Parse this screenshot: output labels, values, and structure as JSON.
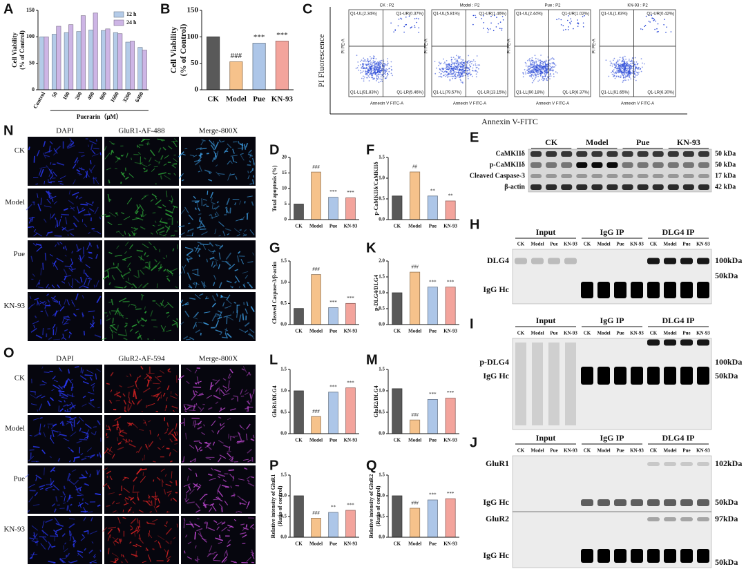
{
  "chart_data": [
    {
      "type": "grouped-bar",
      "label": "A",
      "ylabel": [
        "Cell Viability",
        "(% of Control)"
      ],
      "xlabel": "Puerarin（μM）",
      "categories": [
        "Control",
        "50",
        "100",
        "200",
        "400",
        "800",
        "1600",
        "3200",
        "6400"
      ],
      "series": [
        {
          "name": "12 h",
          "color": "#b4cbe8",
          "values": [
            100,
            105,
            108,
            110,
            113,
            112,
            108,
            90,
            80
          ]
        },
        {
          "name": "24 h",
          "color": "#cdb5e5",
          "values": [
            100,
            120,
            123,
            140,
            145,
            115,
            106,
            92,
            75
          ]
        }
      ],
      "ylim": [
        0,
        150
      ],
      "yticks": [
        0,
        50,
        100,
        150
      ]
    },
    {
      "type": "bar",
      "label": "B",
      "ylabel": [
        "Cell Viability",
        "(% of Control)"
      ],
      "categories": [
        "CK",
        "Model",
        "Pue",
        "KN-93"
      ],
      "values": [
        100,
        53,
        88,
        92
      ],
      "colors": [
        "#595959",
        "#f6c28b",
        "#adc6e8",
        "#f3a49c"
      ],
      "annotations": [
        null,
        "###",
        "***",
        "***"
      ],
      "ylim": [
        0,
        150
      ],
      "yticks": [
        0,
        50,
        100,
        150
      ]
    },
    {
      "type": "bar",
      "label": "D",
      "ylabel": [
        "Total apoptosis (%)"
      ],
      "categories": [
        "CK",
        "Model",
        "Pue",
        "KN-93"
      ],
      "values": [
        5,
        15.3,
        7.2,
        7
      ],
      "colors": [
        "#595959",
        "#f6c28b",
        "#adc6e8",
        "#f3a49c"
      ],
      "annotations": [
        null,
        "###",
        "***",
        "***"
      ],
      "ylim": [
        0,
        20
      ],
      "yticks": [
        0,
        5,
        10,
        15,
        20
      ]
    },
    {
      "type": "bar",
      "label": "F",
      "ylabel": [
        "p-CaMKIIδ/CaMKIIδ"
      ],
      "categories": [
        "CK",
        "Model",
        "Pue",
        "KN-93"
      ],
      "values": [
        0.57,
        1.15,
        0.57,
        0.45
      ],
      "colors": [
        "#595959",
        "#f6c28b",
        "#adc6e8",
        "#f3a49c"
      ],
      "annotations": [
        null,
        "##",
        "**",
        "**"
      ],
      "ylim": [
        0,
        1.5
      ],
      "yticks": [
        {
          "value": 0,
          "label": "0.0"
        },
        0.5,
        {
          "value": 1,
          "label": "1.0"
        },
        1.5
      ]
    },
    {
      "type": "bar",
      "label": "G",
      "ylabel": [
        "Cleaved Caspase-3/β-actin"
      ],
      "categories": [
        "CK",
        "Model",
        "Pue",
        "KN-93"
      ],
      "values": [
        0.38,
        1.18,
        0.4,
        0.5
      ],
      "colors": [
        "#595959",
        "#f6c28b",
        "#adc6e8",
        "#f3a49c"
      ],
      "annotations": [
        null,
        "###",
        "***",
        "***"
      ],
      "ylim": [
        0,
        1.5
      ],
      "yticks": [
        {
          "value": 0,
          "label": "0.0"
        },
        0.5,
        {
          "value": 1,
          "label": "1.0"
        },
        1.5
      ]
    },
    {
      "type": "bar",
      "label": "K",
      "ylabel": [
        "p-DLG4/DLG4"
      ],
      "categories": [
        "CK",
        "Model",
        "Pue",
        "KN-93"
      ],
      "values": [
        1.0,
        1.65,
        1.18,
        1.18
      ],
      "colors": [
        "#595959",
        "#f6c28b",
        "#adc6e8",
        "#f3a49c"
      ],
      "annotations": [
        null,
        "###",
        "***",
        "***"
      ],
      "ylim": [
        0,
        2
      ],
      "yticks": [
        {
          "value": 0,
          "label": "0.0"
        },
        0.5,
        {
          "value": 1,
          "label": "1.0"
        },
        1.5,
        {
          "value": 2,
          "label": "2.0"
        }
      ]
    },
    {
      "type": "bar",
      "label": "L",
      "ylabel": [
        "GluR1/DLG4"
      ],
      "categories": [
        "CK",
        "Model",
        "Pue",
        "KN-93"
      ],
      "values": [
        1.0,
        0.4,
        0.97,
        1.07
      ],
      "colors": [
        "#595959",
        "#f6c28b",
        "#adc6e8",
        "#f3a49c"
      ],
      "annotations": [
        null,
        "###",
        "***",
        "***"
      ],
      "ylim": [
        0,
        1.5
      ],
      "yticks": [
        {
          "value": 0,
          "label": "0.0"
        },
        0.5,
        {
          "value": 1,
          "label": "1.0"
        },
        1.5
      ]
    },
    {
      "type": "bar",
      "label": "M",
      "ylabel": [
        "GluR2/DLG4"
      ],
      "categories": [
        "CK",
        "Model",
        "Pue",
        "KN-93"
      ],
      "values": [
        1.05,
        0.32,
        0.8,
        0.83
      ],
      "colors": [
        "#595959",
        "#f6c28b",
        "#adc6e8",
        "#f3a49c"
      ],
      "annotations": [
        null,
        "###",
        "***",
        "***"
      ],
      "ylim": [
        0,
        1.5
      ],
      "yticks": [
        {
          "value": 0,
          "label": "0.0"
        },
        0.5,
        {
          "value": 1,
          "label": "1.0"
        },
        1.5
      ]
    },
    {
      "type": "bar",
      "label": "P",
      "ylabel": [
        "Relative intensity of GluR1",
        "(Ratio of control)"
      ],
      "categories": [
        "CK",
        "Model",
        "Pue",
        "KN-93"
      ],
      "values": [
        1.0,
        0.46,
        0.6,
        0.65
      ],
      "colors": [
        "#595959",
        "#f6c28b",
        "#adc6e8",
        "#f3a49c"
      ],
      "annotations": [
        null,
        "###",
        "**",
        "***"
      ],
      "ylim": [
        0,
        1.5
      ],
      "yticks": [
        {
          "value": 0,
          "label": "0.0"
        },
        0.5,
        {
          "value": 1,
          "label": "1.0"
        },
        1.5
      ]
    },
    {
      "type": "bar",
      "label": "Q",
      "ylabel": [
        "Relative intensity of GluR2",
        "(Ratio of control)"
      ],
      "categories": [
        "CK",
        "Model",
        "Pue",
        "KN-93"
      ],
      "values": [
        1.0,
        0.7,
        0.9,
        0.93
      ],
      "colors": [
        "#595959",
        "#f6c28b",
        "#adc6e8",
        "#f3a49c"
      ],
      "annotations": [
        null,
        "###",
        "***",
        "***"
      ],
      "ylim": [
        0,
        1.5
      ],
      "yticks": [
        {
          "value": 0,
          "label": "0.0"
        },
        0.5,
        {
          "value": 1,
          "label": "1.0"
        },
        1.5
      ]
    }
  ],
  "flow": {
    "label": "C",
    "ylabel": "PI Fluorescence",
    "xlabel": "Annexin V-FITC",
    "plot_xlabel": "Annexin V FITC-A",
    "plot_ylabel": "PI PE-A",
    "plots": [
      {
        "title": "CK : P2",
        "ul": "Q1-UL(2.34%)",
        "ur": "Q1-UR(0.37%)",
        "ll": "Q1-LL(91.83%)",
        "lr": "Q1-LR(5.46%)"
      },
      {
        "title": "Model : P2",
        "ul": "Q1-UL(5.81%)",
        "ur": "Q1-UR(1.46%)",
        "ll": "Q1-LL(79.57%)",
        "lr": "Q1-LR(13.15%)"
      },
      {
        "title": "Pue : P2",
        "ul": "Q1-UL(2.44%)",
        "ur": "Q1-UR(1.02%)",
        "ll": "Q1-LL(90.18%)",
        "lr": "Q1-LR(6.37%)"
      },
      {
        "title": "KN-93 : P2",
        "ul": "Q1-UL(1.63%)",
        "ur": "Q1-UR(0.42%)",
        "ll": "Q1-LL(91.65%)",
        "lr": "Q1-LR(6.30%)"
      }
    ]
  },
  "microscopy": [
    {
      "label": "N",
      "columns": [
        "DAPI",
        "GluR1-AF-488",
        "Merge-800X"
      ],
      "rows": [
        "CK",
        "Model",
        "Pue",
        "KN-93"
      ]
    },
    {
      "label": "O",
      "columns": [
        "DAPI",
        "GluR2-AF-594",
        "Merge-800X"
      ],
      "rows": [
        "CK",
        "Model",
        "Pue",
        "KN-93"
      ]
    }
  ],
  "blots": [
    {
      "label": "E",
      "groups": [
        "CK",
        "Model",
        "Pue",
        "KN-93"
      ],
      "rows": [
        {
          "name": "CaMKIIδ",
          "size": "50 kDa"
        },
        {
          "name": "p-CaMKIIδ",
          "size": "50 kDa"
        },
        {
          "name": "Cleaved Caspase-3",
          "size": "17 kDa"
        },
        {
          "name": "β-actin",
          "size": "42 kDa"
        }
      ]
    },
    {
      "label": "H",
      "groups": [
        "Input",
        "IgG IP",
        "DLG4 IP"
      ],
      "lanes": [
        "CK",
        "Model",
        "Pue",
        "KN-93"
      ],
      "rows": [
        {
          "name": "DLG4",
          "size": "100kDa"
        },
        {
          "name": "IgG Hc",
          "size": "50kDa"
        }
      ]
    },
    {
      "label": "I",
      "groups": [
        "Input",
        "IgG IP",
        "DLG4 IP"
      ],
      "lanes": [
        "CK",
        "Model",
        "Pue",
        "KN-93"
      ],
      "rows": [
        {
          "name": "p-DLG4",
          "size": "100kDa"
        },
        {
          "name": "IgG Hc",
          "size": "50kDa"
        }
      ]
    },
    {
      "label": "J",
      "groups": [
        "Input",
        "IgG IP",
        "DLG4 IP"
      ],
      "lanes": [
        "CK",
        "Model",
        "Pue",
        "KN-93"
      ],
      "rows": [
        {
          "name": "GluR1",
          "size": "102kDa"
        },
        {
          "name": "IgG Hc",
          "size": "50kDa"
        },
        {
          "name": "GluR2",
          "size": "97kDa"
        },
        {
          "name": "IgG Hc",
          "size": "50kDa"
        }
      ]
    }
  ]
}
